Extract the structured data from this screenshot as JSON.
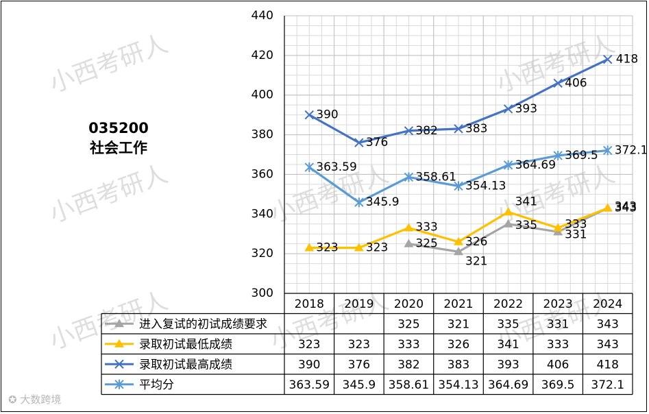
{
  "chart_data": {
    "type": "line",
    "title": "035200",
    "subtitle": "社会工作",
    "categories": [
      "2018",
      "2019",
      "2020",
      "2021",
      "2022",
      "2023",
      "2024"
    ],
    "ylim": [
      300,
      440
    ],
    "yticks": [
      300,
      320,
      340,
      360,
      380,
      400,
      420,
      440
    ],
    "grid": true,
    "legend": "data-table-below",
    "series": [
      {
        "name": "进入复试的初试成绩要求",
        "color": "#a5a5a5",
        "marker": "triangle",
        "values": [
          null,
          null,
          325,
          321,
          335,
          331,
          343
        ],
        "labels": [
          "",
          "",
          "325",
          "321",
          "335",
          "331",
          "343"
        ]
      },
      {
        "name": "录取初试最低成绩",
        "color": "#ffc000",
        "marker": "triangle",
        "values": [
          323,
          323,
          333,
          326,
          341,
          333,
          343
        ],
        "labels": [
          "323",
          "323",
          "333",
          "326",
          "341",
          "333",
          "343"
        ]
      },
      {
        "name": "录取初试最高成绩",
        "color": "#4472c4",
        "marker": "x",
        "values": [
          390,
          376,
          382,
          383,
          393,
          406,
          418
        ],
        "labels": [
          "390",
          "376",
          "382",
          "383",
          "393",
          "406",
          "418"
        ]
      },
      {
        "name": "平均分",
        "color": "#5b9bd5",
        "marker": "star",
        "values": [
          363.59,
          345.9,
          358.61,
          354.13,
          364.69,
          369.5,
          372.1
        ],
        "labels": [
          "363.59",
          "345.9",
          "358.61",
          "354.13",
          "364.69",
          "369.5",
          "372.1"
        ]
      }
    ]
  },
  "watermark": "小西考研人",
  "footer_logo": "大数跨境"
}
